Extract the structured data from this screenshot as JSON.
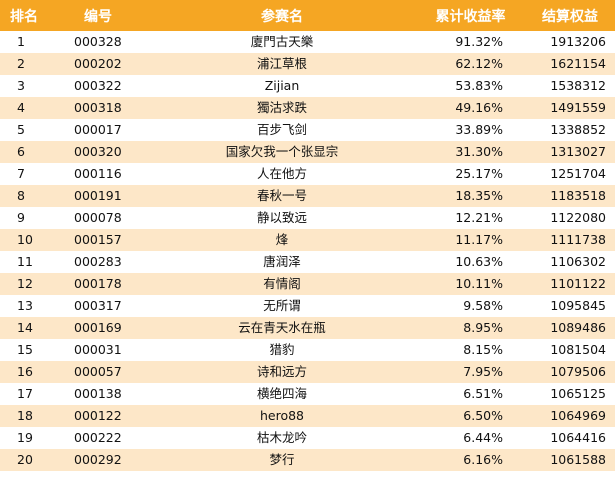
{
  "header": {
    "rank": "排名",
    "id": "编号",
    "name": "参赛名",
    "rate": "累计收益率",
    "equity": "结算权益"
  },
  "rows": [
    {
      "rank": "1",
      "id": "000328",
      "name": "廈門古天樂",
      "rate": "91.32%",
      "equity": "1913206"
    },
    {
      "rank": "2",
      "id": "000202",
      "name": "浦江草根",
      "rate": "62.12%",
      "equity": "1621154"
    },
    {
      "rank": "3",
      "id": "000322",
      "name": "Zijian",
      "rate": "53.83%",
      "equity": "1538312"
    },
    {
      "rank": "4",
      "id": "000318",
      "name": "獨沽求跌",
      "rate": "49.16%",
      "equity": "1491559"
    },
    {
      "rank": "5",
      "id": "000017",
      "name": "百步飞剑",
      "rate": "33.89%",
      "equity": "1338852"
    },
    {
      "rank": "6",
      "id": "000320",
      "name": "国家欠我一个张显宗",
      "rate": "31.30%",
      "equity": "1313027"
    },
    {
      "rank": "7",
      "id": "000116",
      "name": "人在他方",
      "rate": "25.17%",
      "equity": "1251704"
    },
    {
      "rank": "8",
      "id": "000191",
      "name": "春秋一号",
      "rate": "18.35%",
      "equity": "1183518"
    },
    {
      "rank": "9",
      "id": "000078",
      "name": "静以致远",
      "rate": "12.21%",
      "equity": "1122080"
    },
    {
      "rank": "10",
      "id": "000157",
      "name": "烽",
      "rate": "11.17%",
      "equity": "1111738"
    },
    {
      "rank": "11",
      "id": "000283",
      "name": "唐润泽",
      "rate": "10.63%",
      "equity": "1106302"
    },
    {
      "rank": "12",
      "id": "000178",
      "name": "有情阁",
      "rate": "10.11%",
      "equity": "1101122"
    },
    {
      "rank": "13",
      "id": "000317",
      "name": "无所谓",
      "rate": "9.58%",
      "equity": "1095845"
    },
    {
      "rank": "14",
      "id": "000169",
      "name": "云在青天水在瓶",
      "rate": "8.95%",
      "equity": "1089486"
    },
    {
      "rank": "15",
      "id": "000031",
      "name": "猎豹",
      "rate": "8.15%",
      "equity": "1081504"
    },
    {
      "rank": "16",
      "id": "000057",
      "name": "诗和远方",
      "rate": "7.95%",
      "equity": "1079506"
    },
    {
      "rank": "17",
      "id": "000138",
      "name": "横绝四海",
      "rate": "6.51%",
      "equity": "1065125"
    },
    {
      "rank": "18",
      "id": "000122",
      "name": "hero88",
      "rate": "6.50%",
      "equity": "1064969"
    },
    {
      "rank": "19",
      "id": "000222",
      "name": "枯木龙吟",
      "rate": "6.44%",
      "equity": "1064416"
    },
    {
      "rank": "20",
      "id": "000292",
      "name": "梦行",
      "rate": "6.16%",
      "equity": "1061588"
    }
  ],
  "colors": {
    "header_bg": "#f5a623",
    "header_text": "#ffffff",
    "row_alt_bg": "#fde7c8",
    "row_bg": "#ffffff"
  }
}
